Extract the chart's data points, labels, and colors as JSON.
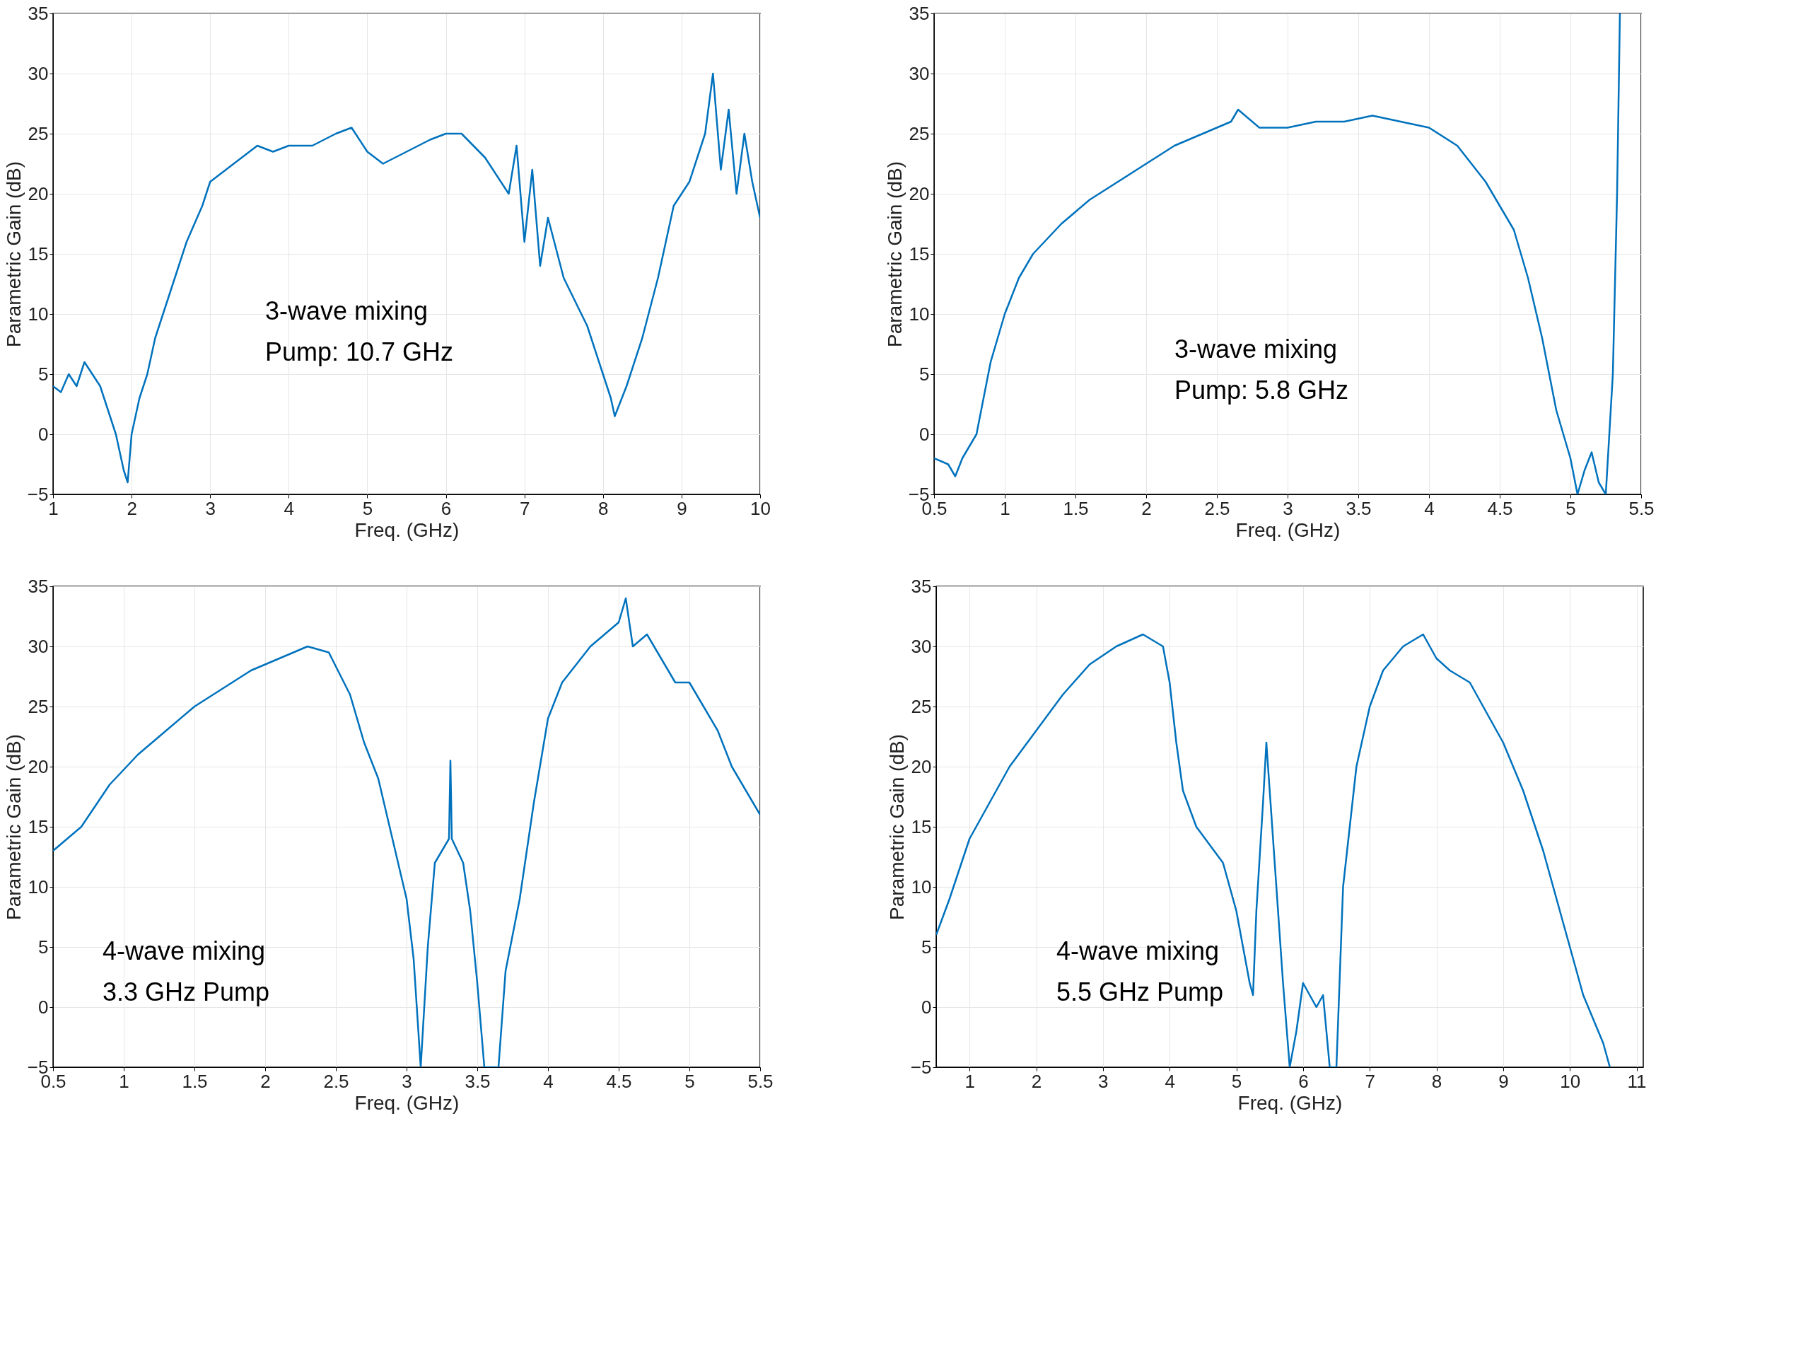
{
  "chart_data": [
    {
      "type": "line",
      "xlabel": "Freq. (GHz)",
      "ylabel": "Parametric Gain (dB)",
      "annotations": [
        "3-wave mixing",
        "Pump:  10.7 GHz"
      ],
      "xlim": [
        1,
        10
      ],
      "xticks": [
        1,
        2,
        3,
        4,
        5,
        6,
        7,
        8,
        9,
        10
      ],
      "ylim": [
        -5,
        35
      ],
      "yticks": [
        -5,
        0,
        5,
        10,
        15,
        20,
        25,
        30,
        35
      ],
      "grid": true,
      "series": [
        {
          "color": "#0072bd",
          "x": [
            1.0,
            1.1,
            1.2,
            1.3,
            1.4,
            1.5,
            1.6,
            1.7,
            1.8,
            1.9,
            1.95,
            2.0,
            2.1,
            2.2,
            2.3,
            2.5,
            2.7,
            2.9,
            3.0,
            3.2,
            3.4,
            3.6,
            3.8,
            4.0,
            4.3,
            4.6,
            4.8,
            5.0,
            5.2,
            5.5,
            5.8,
            6.0,
            6.2,
            6.5,
            6.8,
            6.9,
            7.0,
            7.1,
            7.2,
            7.3,
            7.5,
            7.8,
            8.0,
            8.1,
            8.15,
            8.3,
            8.5,
            8.7,
            8.9,
            9.1,
            9.3,
            9.4,
            9.5,
            9.6,
            9.7,
            9.8,
            9.9,
            10.0
          ],
          "values": [
            4,
            3.5,
            5,
            4,
            6,
            5,
            4,
            2,
            0,
            -3,
            -4,
            0,
            3,
            5,
            8,
            12,
            16,
            19,
            21,
            22,
            23,
            24,
            23.5,
            24,
            24,
            25,
            25.5,
            23.5,
            22.5,
            23.5,
            24.5,
            25,
            25,
            23,
            20,
            24,
            16,
            22,
            14,
            18,
            13,
            9,
            5,
            3,
            1.5,
            4,
            8,
            13,
            19,
            21,
            25,
            30,
            22,
            27,
            20,
            25,
            21,
            18
          ]
        }
      ]
    },
    {
      "type": "line",
      "xlabel": "Freq. (GHz)",
      "ylabel": "Parametric Gain (dB)",
      "annotations": [
        "3-wave mixing",
        "Pump:  5.8 GHz"
      ],
      "xlim": [
        0.5,
        5.5
      ],
      "xticks": [
        0.5,
        1,
        1.5,
        2,
        2.5,
        3,
        3.5,
        4,
        4.5,
        5,
        5.5
      ],
      "ylim": [
        -5,
        35
      ],
      "yticks": [
        -5,
        0,
        5,
        10,
        15,
        20,
        25,
        30,
        35
      ],
      "grid": true,
      "series": [
        {
          "color": "#0072bd",
          "x": [
            0.5,
            0.6,
            0.65,
            0.7,
            0.8,
            0.85,
            0.9,
            1.0,
            1.1,
            1.2,
            1.4,
            1.6,
            1.8,
            2.0,
            2.2,
            2.4,
            2.6,
            2.65,
            2.8,
            3.0,
            3.2,
            3.4,
            3.6,
            3.8,
            4.0,
            4.2,
            4.4,
            4.6,
            4.7,
            4.8,
            4.9,
            5.0,
            5.05,
            5.1,
            5.15,
            5.2,
            5.25,
            5.3,
            5.33,
            5.35
          ],
          "values": [
            -2,
            -2.5,
            -3.5,
            -2,
            0,
            3,
            6,
            10,
            13,
            15,
            17.5,
            19.5,
            21,
            22.5,
            24,
            25,
            26,
            27,
            25.5,
            25.5,
            26,
            26,
            26.5,
            26,
            25.5,
            24,
            21,
            17,
            13,
            8,
            2,
            -2,
            -5,
            -3,
            -1.5,
            -4,
            -5,
            5,
            20,
            35
          ]
        }
      ]
    },
    {
      "type": "line",
      "xlabel": "Freq. (GHz)",
      "ylabel": "Parametric Gain (dB)",
      "annotations": [
        "4-wave mixing",
        "3.3 GHz Pump"
      ],
      "xlim": [
        0.5,
        5.5
      ],
      "xticks": [
        0.5,
        1,
        1.5,
        2,
        2.5,
        3,
        3.5,
        4,
        4.5,
        5,
        5.5
      ],
      "ylim": [
        -5,
        35
      ],
      "yticks": [
        -5,
        0,
        5,
        10,
        15,
        20,
        25,
        30,
        35
      ],
      "grid": true,
      "series": [
        {
          "color": "#0072bd",
          "x": [
            0.5,
            0.7,
            0.9,
            1.1,
            1.3,
            1.5,
            1.7,
            1.9,
            2.1,
            2.3,
            2.45,
            2.6,
            2.7,
            2.8,
            2.9,
            3.0,
            3.05,
            3.1,
            3.15,
            3.2,
            3.25,
            3.3,
            3.31,
            3.32,
            3.4,
            3.45,
            3.5,
            3.55,
            3.65,
            3.7,
            3.8,
            3.9,
            4.0,
            4.1,
            4.3,
            4.5,
            4.55,
            4.6,
            4.7,
            4.8,
            4.9,
            5.0,
            5.1,
            5.2,
            5.3,
            5.4,
            5.5
          ],
          "values": [
            13,
            15,
            18.5,
            21,
            23,
            25,
            26.5,
            28,
            29,
            30,
            29.5,
            26,
            22,
            19,
            14,
            9,
            4,
            -5,
            5,
            12,
            13,
            14,
            20.5,
            14,
            12,
            8,
            2,
            -5,
            -5,
            3,
            9,
            17,
            24,
            27,
            30,
            32,
            34,
            30,
            31,
            29,
            27,
            27,
            25,
            23,
            20,
            18,
            16
          ]
        }
      ]
    },
    {
      "type": "line",
      "xlabel": "Freq. (GHz)",
      "ylabel": "Parametric Gain (dB)",
      "annotations": [
        "4-wave mixing",
        "5.5 GHz Pump"
      ],
      "xlim": [
        0.5,
        11.1
      ],
      "xticks": [
        1,
        2,
        3,
        4,
        5,
        6,
        7,
        8,
        9,
        10,
        11
      ],
      "ylim": [
        -5,
        35
      ],
      "yticks": [
        -5,
        0,
        5,
        10,
        15,
        20,
        25,
        30,
        35
      ],
      "grid": true,
      "series": [
        {
          "color": "#0072bd",
          "x": [
            0.5,
            0.7,
            1.0,
            1.3,
            1.6,
            2.0,
            2.4,
            2.8,
            3.2,
            3.6,
            3.9,
            4.0,
            4.1,
            4.2,
            4.4,
            4.6,
            4.8,
            5.0,
            5.1,
            5.2,
            5.25,
            5.3,
            5.4,
            5.45,
            5.5,
            5.6,
            5.7,
            5.8,
            5.9,
            6.0,
            6.1,
            6.2,
            6.3,
            6.4,
            6.5,
            6.6,
            6.8,
            7.0,
            7.2,
            7.5,
            7.8,
            8.0,
            8.2,
            8.5,
            8.8,
            9.0,
            9.3,
            9.6,
            9.9,
            10.2,
            10.5,
            10.6
          ],
          "values": [
            6,
            9,
            14,
            17,
            20,
            23,
            26,
            28.5,
            30,
            31,
            30,
            27,
            22,
            18,
            15,
            13.5,
            12,
            8,
            5,
            2,
            1,
            8,
            17,
            22,
            18,
            10,
            2,
            -5,
            -2,
            2,
            1,
            0,
            1,
            -5,
            -5,
            10,
            20,
            25,
            28,
            30,
            31,
            29,
            28,
            27,
            24,
            22,
            18,
            13,
            7,
            1,
            -3,
            -5
          ]
        }
      ]
    }
  ]
}
